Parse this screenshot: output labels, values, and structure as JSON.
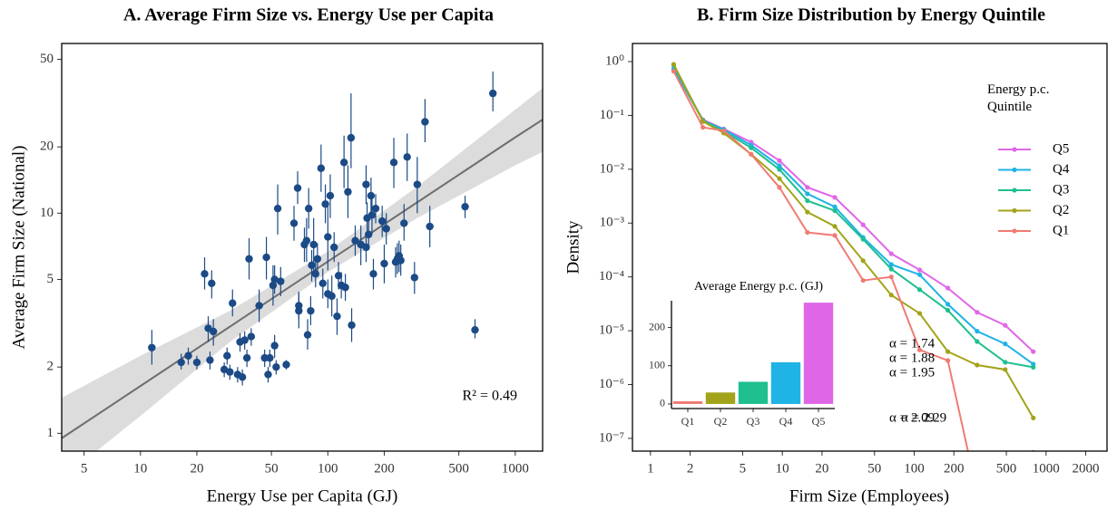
{
  "chart_data": [
    {
      "type": "scatter",
      "title": "A. Average Firm Size vs. Energy Use per Capita",
      "x_label": "Energy Use per Capita (GJ)",
      "y_label": "Average Firm Size (National)",
      "color": "#1b4a86",
      "log_x": true,
      "log_y": true,
      "xlim": [
        3.8,
        1400
      ],
      "ylim": [
        0.83,
        59
      ],
      "xticks": [
        5,
        10,
        20,
        50,
        100,
        200,
        500,
        1000
      ],
      "yticks": [
        1,
        2,
        5,
        10,
        20,
        50
      ],
      "x": [
        11.5,
        16.5,
        18,
        20,
        22,
        23,
        23.5,
        24,
        24.5,
        28,
        29,
        30,
        31,
        33,
        34,
        35,
        36,
        37,
        38,
        39,
        43,
        46,
        47,
        48,
        49,
        51,
        52,
        52,
        53,
        54,
        56,
        60,
        66,
        69,
        70,
        70,
        75,
        77,
        78,
        79,
        81,
        82,
        84,
        86,
        88,
        92,
        94,
        97,
        100,
        100,
        103,
        105,
        108,
        112,
        114,
        118,
        122,
        124,
        128,
        133,
        134,
        140,
        150,
        160,
        160,
        162,
        165,
        170,
        172,
        175,
        180,
        195,
        200,
        205,
        225,
        230,
        235,
        240,
        245,
        255,
        265,
        290,
        300,
        330,
        350,
        540,
        610,
        760
      ],
      "values": [
        2.45,
        2.1,
        2.25,
        2.1,
        5.3,
        3.0,
        2.15,
        4.8,
        2.9,
        1.95,
        2.25,
        1.9,
        3.9,
        1.85,
        2.6,
        1.8,
        2.65,
        2.2,
        6.2,
        2.75,
        3.8,
        2.2,
        6.3,
        1.85,
        2.2,
        4.7,
        5.0,
        2.5,
        2.0,
        10.5,
        4.9,
        2.05,
        9.0,
        13,
        3.6,
        3.8,
        7.2,
        7.5,
        2.8,
        10.5,
        3.6,
        5.8,
        7.2,
        5.3,
        6.2,
        16,
        4.8,
        11,
        7.8,
        4.3,
        12,
        4.2,
        7.0,
        3.4,
        5.2,
        4.7,
        17,
        4.6,
        12.5,
        22,
        3.1,
        7.5,
        7.2,
        7.0,
        13.5,
        9.5,
        8.0,
        12,
        9.8,
        5.3,
        10.5,
        9.2,
        5.9,
        8.5,
        17,
        6.0,
        6.2,
        6.4,
        6.1,
        9.0,
        18,
        5.1,
        13.5,
        26,
        8.7,
        10.7,
        2.95,
        35
      ],
      "y_low": [
        2.05,
        1.95,
        2.05,
        1.95,
        4.5,
        2.6,
        1.95,
        4.1,
        2.5,
        1.8,
        2.05,
        1.75,
        3.4,
        1.7,
        2.35,
        1.65,
        2.4,
        2.0,
        5.0,
        2.5,
        3.2,
        2.0,
        5.0,
        1.7,
        2.0,
        3.8,
        4.3,
        2.2,
        1.85,
        8.0,
        4.2,
        1.95,
        7.5,
        11,
        3.0,
        3.3,
        6.0,
        6.0,
        2.4,
        8.5,
        3.1,
        4.9,
        5.5,
        4.6,
        5.3,
        12.5,
        4.1,
        9,
        5.5,
        3.7,
        9.5,
        3.4,
        6.0,
        2.8,
        4.5,
        4.1,
        13,
        4.0,
        9.5,
        16,
        2.6,
        6.4,
        5.8,
        6.0,
        11,
        8.0,
        6.8,
        10,
        8,
        4.5,
        9.0,
        7.8,
        4.8,
        7.2,
        13,
        5.1,
        5.3,
        5.4,
        5.2,
        7.5,
        14,
        4.3,
        10,
        21,
        7,
        9.5,
        2.7,
        29
      ],
      "y_high": [
        2.95,
        2.3,
        2.45,
        2.25,
        6.3,
        3.4,
        2.35,
        5.5,
        3.3,
        2.1,
        2.45,
        2.05,
        4.5,
        2.0,
        2.85,
        1.95,
        2.9,
        2.4,
        7.7,
        3.0,
        4.5,
        2.4,
        7.8,
        2.0,
        2.4,
        5.8,
        5.8,
        2.8,
        2.15,
        13.5,
        5.7,
        2.15,
        10.8,
        15.5,
        4.4,
        4.3,
        8.6,
        9.5,
        3.3,
        13,
        4.2,
        6.8,
        9.5,
        6.1,
        7.3,
        20.5,
        5.6,
        13.5,
        11,
        5.0,
        15,
        5.2,
        8.2,
        4.1,
        6.0,
        5.4,
        22.5,
        5.3,
        16.5,
        35,
        3.7,
        8.8,
        8.8,
        8.2,
        16.5,
        11.2,
        9.4,
        14.5,
        12,
        6.2,
        12.2,
        10.8,
        7.2,
        10,
        22,
        7.0,
        7.3,
        7.5,
        7.2,
        11,
        23,
        6.0,
        18,
        33,
        10.8,
        12,
        3.3,
        44
      ],
      "fit": {
        "color": "#6e6e6e",
        "band_color": "#dcdcdc",
        "x": [
          3.8,
          10,
          30,
          100,
          300,
          1000,
          1400
        ],
        "y": [
          0.95,
          1.64,
          3.05,
          6.03,
          11.2,
          22.1,
          26.6
        ],
        "low": [
          0.62,
          1.2,
          2.6,
          5.4,
          9.5,
          16.5,
          19
        ],
        "high": [
          1.45,
          2.25,
          3.6,
          6.7,
          13.2,
          29.5,
          37
        ]
      },
      "annotation": "R² = 0.49"
    },
    {
      "type": "line",
      "title": "B.  Firm Size Distribution by Energy Quintile",
      "x_label": "Firm Size (Employees)",
      "y_label": "Density",
      "log_x": true,
      "log_y": true,
      "xlim": [
        0.73,
        2900
      ],
      "ylim": [
        5.8e-08,
        2.17
      ],
      "xticks": [
        1,
        2,
        5,
        10,
        20,
        50,
        100,
        200,
        500,
        1000,
        2000
      ],
      "yticks": [
        {
          "value": 1,
          "label": "10⁰"
        },
        {
          "value": 0.1,
          "label": "10⁻¹"
        },
        {
          "value": 0.01,
          "label": "10⁻²"
        },
        {
          "value": 0.001,
          "label": "10⁻³"
        },
        {
          "value": 0.0001,
          "label": "10⁻⁴"
        },
        {
          "value": 1e-05,
          "label": "10⁻⁵"
        },
        {
          "value": 1e-06,
          "label": "10⁻⁶"
        },
        {
          "value": 1e-07,
          "label": "10⁻⁷"
        }
      ],
      "legend_title": "Energy p.c. Quintile",
      "x": [
        1.5,
        2.5,
        3.6,
        5.8,
        9.5,
        15.5,
        25,
        41,
        67,
        110,
        180,
        300,
        490,
        800
      ],
      "series": [
        {
          "name": "Q5",
          "color": "#e066e8",
          "annotation": "α = 1.74",
          "values": [
            0.7,
            0.083,
            0.056,
            0.032,
            0.0145,
            0.0046,
            0.003,
            0.00093,
            0.00027,
            0.000135,
            6.2e-05,
            2.2e-05,
            1.26e-05,
            4.1e-06
          ]
        },
        {
          "name": "Q4",
          "color": "#1fb3e6",
          "annotation": "α = 1.88",
          "values": [
            0.73,
            0.08,
            0.055,
            0.028,
            0.0116,
            0.0035,
            0.002,
            0.00054,
            0.00017,
            0.00011,
            3.1e-05,
            9.8e-06,
            5.7e-06,
            2.4e-06
          ]
        },
        {
          "name": "Q3",
          "color": "#1fbf8f",
          "annotation": "α = 1.95",
          "values": [
            0.85,
            0.08,
            0.051,
            0.025,
            0.0099,
            0.0026,
            0.0017,
            0.0005,
            0.00014,
            5.8e-05,
            2.4e-05,
            6.3e-06,
            2.6e-06,
            2.1e-06
          ]
        },
        {
          "name": "Q2",
          "color": "#a3a31a",
          "annotation": "α = 2.09",
          "values": [
            0.89,
            0.077,
            0.047,
            0.019,
            0.0067,
            0.0016,
            0.00087,
            0.0002,
            4.6e-05,
            2.1e-05,
            4.1e-06,
            2.3e-06,
            1.9e-06,
            2.4e-07
          ]
        },
        {
          "name": "Q1",
          "color": "#ef7b73",
          "annotation": "α = 2.29",
          "values": [
            0.66,
            0.06,
            0.052,
            0.0189,
            0.0046,
            0.00067,
            0.00059,
            8.6e-05,
            0.0001,
            4.4e-06,
            2.8e-06,
            1e-08,
            5e-09,
            5.5e-08
          ]
        }
      ]
    },
    {
      "type": "bar",
      "title": "Average Energy p.c. (GJ)",
      "categories": [
        "Q1",
        "Q2",
        "Q3",
        "Q4",
        "Q5"
      ],
      "values": [
        7,
        30,
        58,
        109,
        265
      ],
      "colors": [
        "#ef7b73",
        "#a3a31a",
        "#1fbf8f",
        "#1fb3e6",
        "#e066e8"
      ],
      "ylim": [
        -12,
        270
      ],
      "yticks": [
        0,
        100,
        200
      ]
    }
  ]
}
